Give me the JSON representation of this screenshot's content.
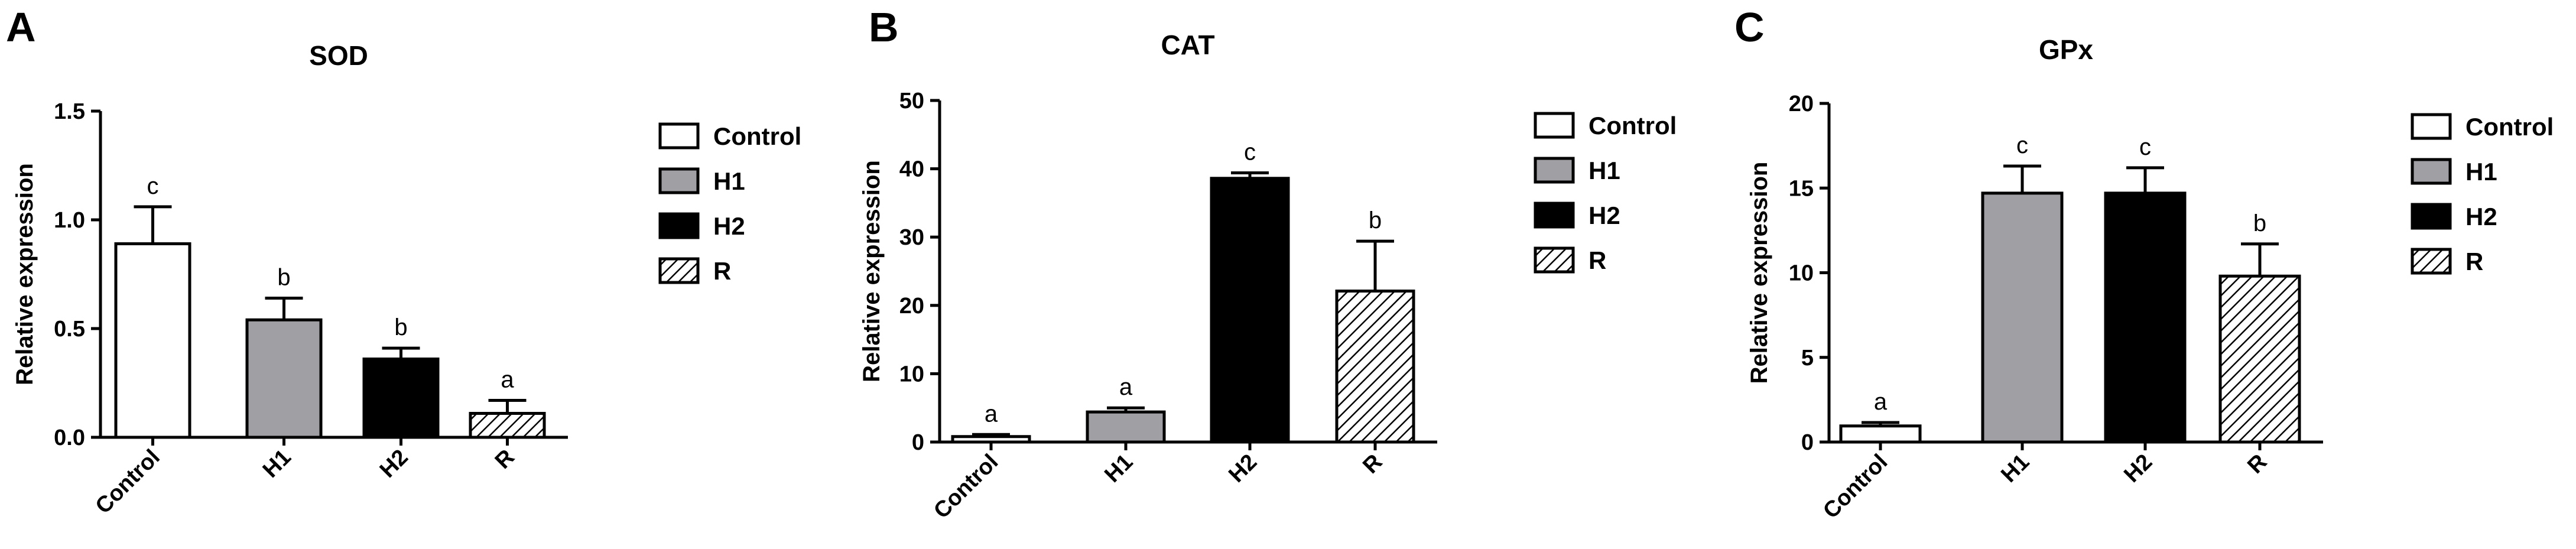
{
  "colors": {
    "Control": "#ffffff",
    "H1": "#a0a0a4",
    "H2": "#000000",
    "R": "hatch"
  },
  "legend": [
    "Control",
    "H1",
    "H2",
    "R"
  ],
  "chart_data": [
    {
      "type": "bar",
      "panel": "A",
      "title": "SOD",
      "ylabel": "Relative expression",
      "xlabel": "",
      "categories": [
        "Control",
        "H1",
        "H2",
        "R"
      ],
      "values": [
        0.89,
        0.54,
        0.36,
        0.11
      ],
      "errors": [
        0.17,
        0.1,
        0.05,
        0.06
      ],
      "significance": [
        "c",
        "b",
        "b",
        "a"
      ],
      "ylim": [
        0,
        1.5
      ],
      "yticks": [
        "0.0",
        "0.5",
        "1.0",
        "1.5"
      ]
    },
    {
      "type": "bar",
      "panel": "B",
      "title": "CAT",
      "ylabel": "Relative expression",
      "xlabel": "",
      "categories": [
        "Control",
        "H1",
        "H2",
        "R"
      ],
      "values": [
        0.8,
        4.4,
        38.6,
        22.1
      ],
      "errors": [
        0.3,
        0.6,
        0.8,
        7.3
      ],
      "significance": [
        "a",
        "a",
        "c",
        "b"
      ],
      "ylim": [
        0,
        50
      ],
      "yticks": [
        "0",
        "10",
        "20",
        "30",
        "40",
        "50"
      ]
    },
    {
      "type": "bar",
      "panel": "C",
      "title": "GPx",
      "ylabel": "Relative expression",
      "xlabel": "",
      "categories": [
        "Control",
        "H1",
        "H2",
        "R"
      ],
      "values": [
        0.95,
        14.7,
        14.7,
        9.8
      ],
      "errors": [
        0.2,
        1.6,
        1.5,
        1.9
      ],
      "significance": [
        "a",
        "c",
        "c",
        "b"
      ],
      "ylim": [
        0,
        20
      ],
      "yticks": [
        "0",
        "5",
        "10",
        "15",
        "20"
      ]
    }
  ]
}
